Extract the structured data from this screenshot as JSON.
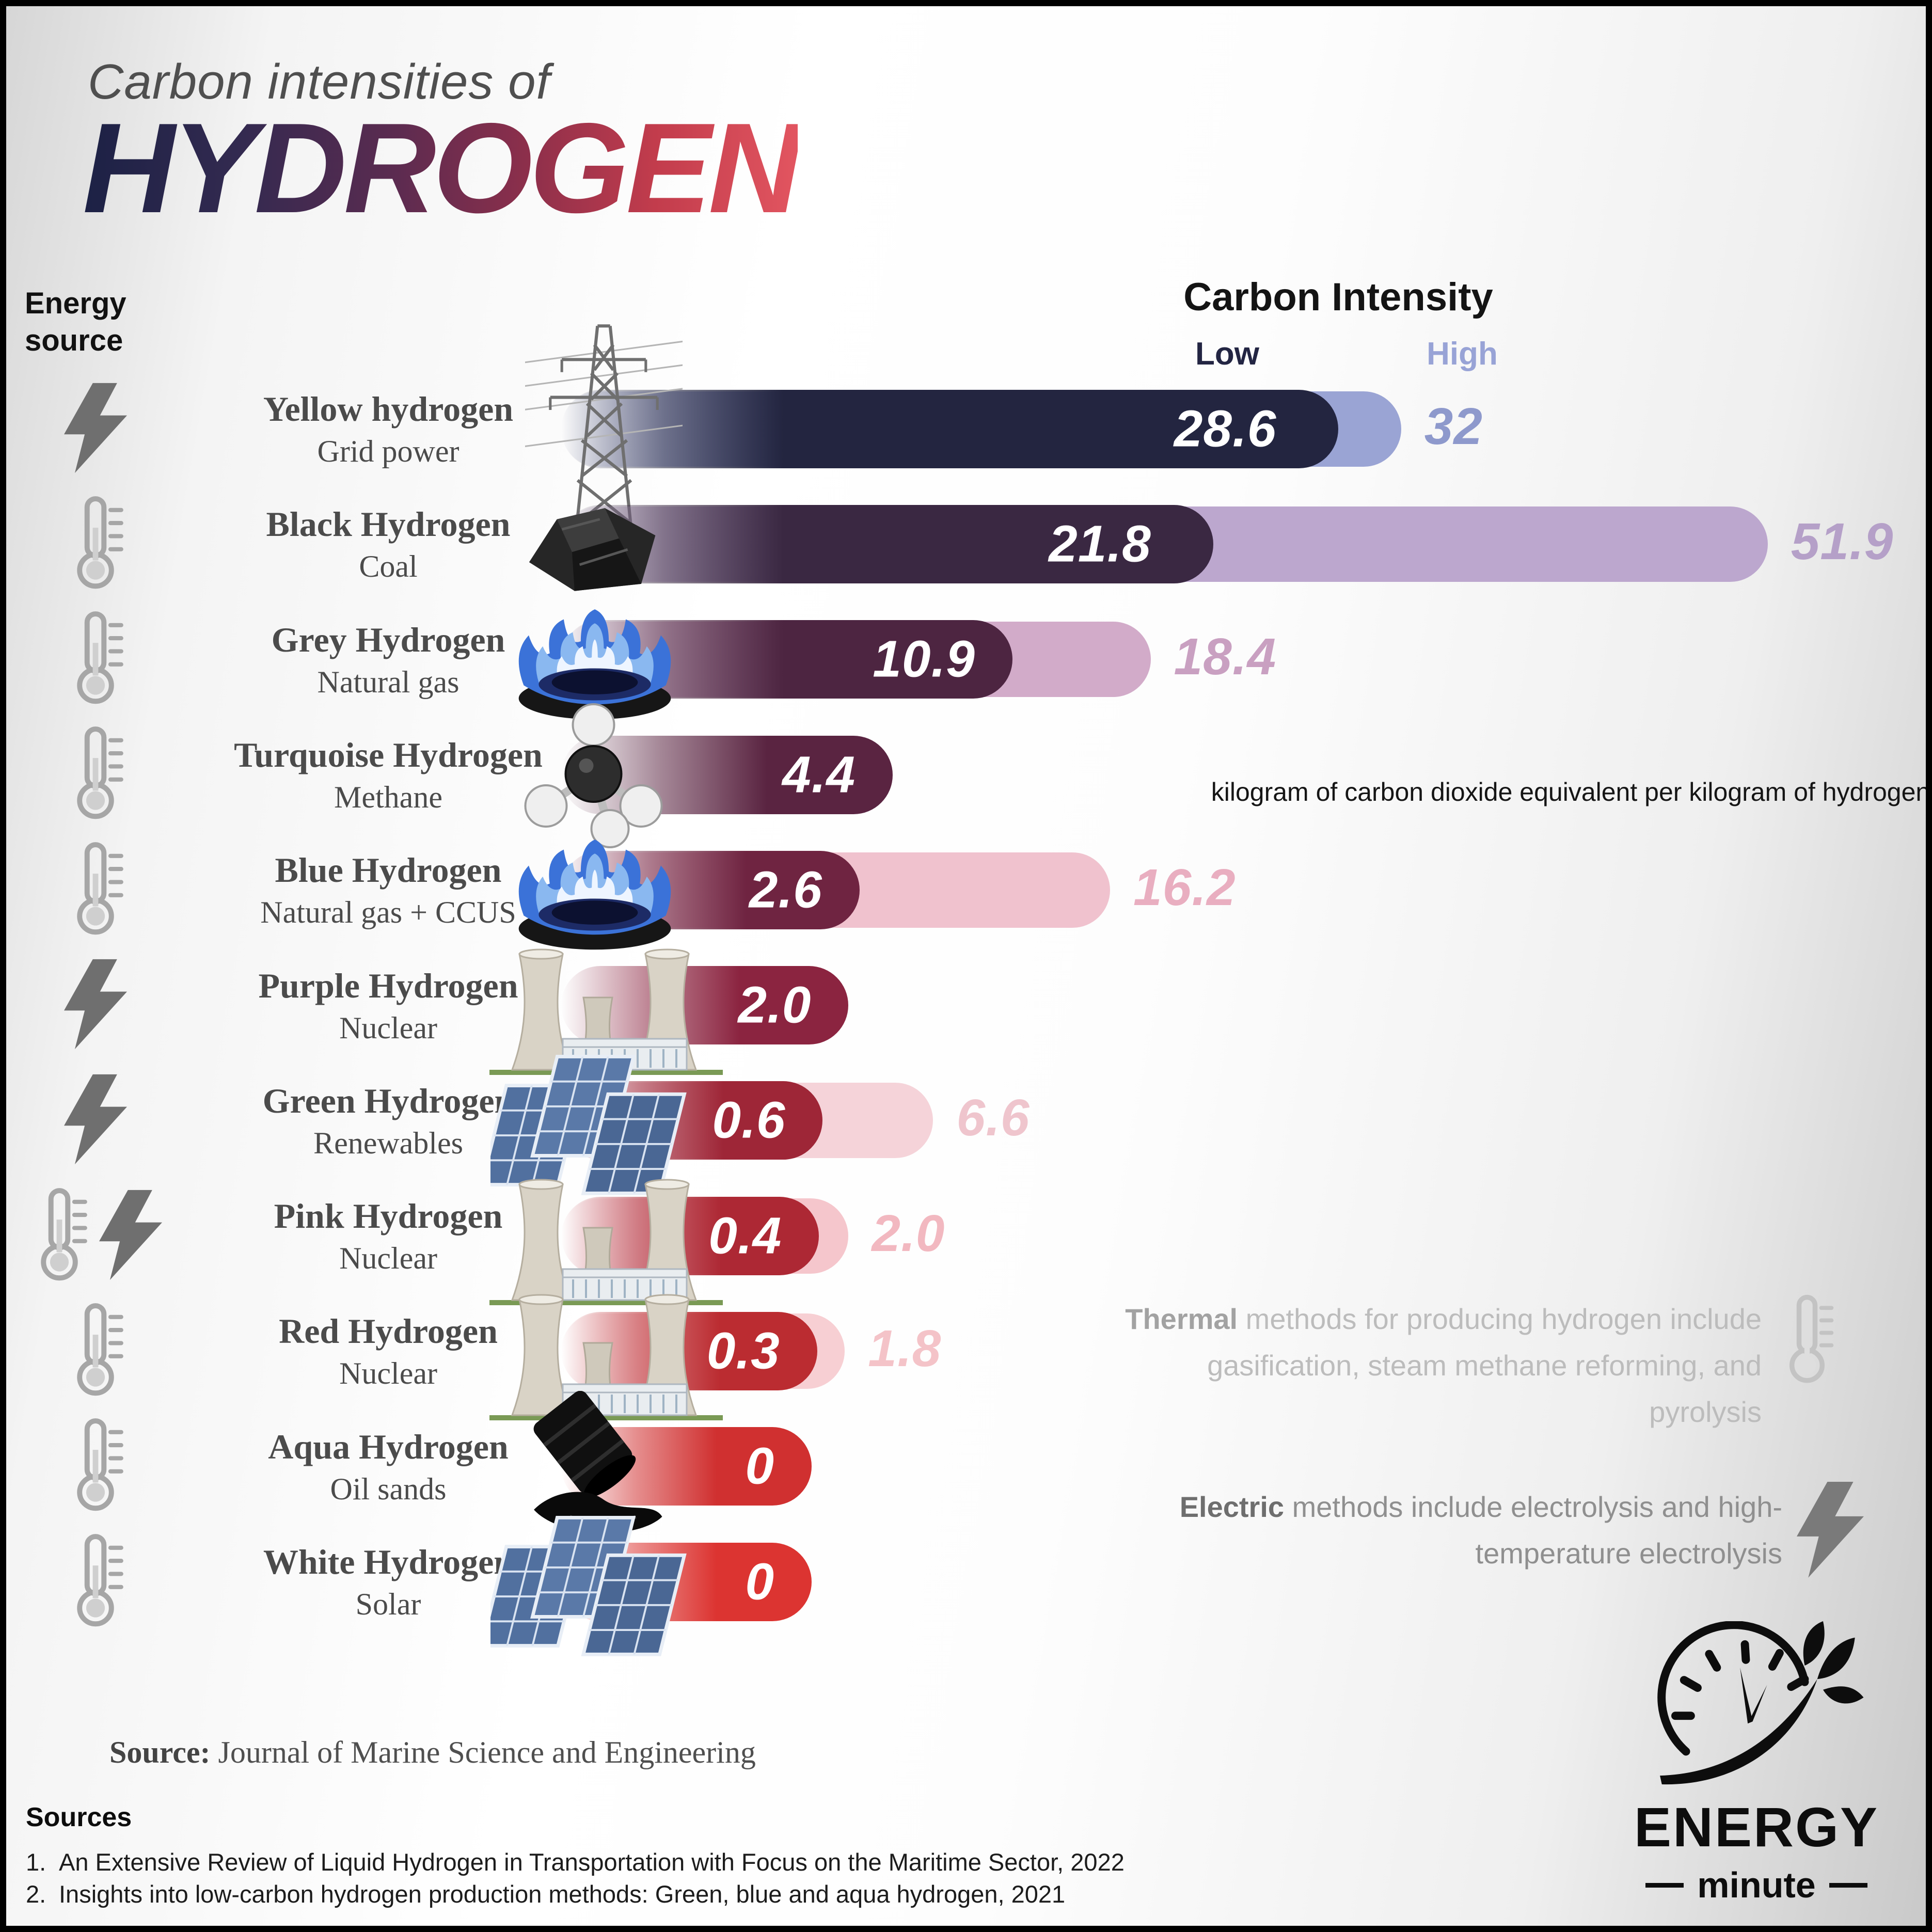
{
  "title": {
    "tagline": "Carbon intensities of",
    "main": "HYDROGEN"
  },
  "column_header": "Energy source",
  "value_header": {
    "label": "Carbon Intensity",
    "low_label": "Low",
    "high_label": "High",
    "low_color": "#232543",
    "high_color": "#98a3d6"
  },
  "units_note": "kilogram of carbon dioxide equivalent per kilogram of hydrogen",
  "notes": {
    "thermal": {
      "lead": "Thermal",
      "text": " methods for producing hydrogen include gasification, steam methane reforming, and pyrolysis",
      "icon": "thermometer-icon"
    },
    "electric": {
      "lead": "Electric",
      "text": " methods include electrolysis and high-temperature electrolysis",
      "icon": "lightning-icon"
    }
  },
  "rows": [
    {
      "name": "Yellow hydrogen",
      "sub": "Grid power",
      "energy": [
        "electric"
      ],
      "photo": "power-lines-photo",
      "low": 28.6,
      "low_label": "28.6",
      "high": 32,
      "high_label": "32",
      "low_color": "#232540",
      "high_color": "#9aa4d4",
      "high_text_color": "#8e99cc"
    },
    {
      "name": "Black Hydrogen",
      "sub": "Coal",
      "energy": [
        "thermal"
      ],
      "photo": "coal-photo",
      "low": 21.8,
      "low_label": "21.8",
      "high": 51.9,
      "high_label": "51.9",
      "low_color": "#3a2842",
      "high_color": "#bca7ce",
      "high_text_color": "#b5a0c8"
    },
    {
      "name": "Grey Hydrogen",
      "sub": "Natural gas",
      "energy": [
        "thermal"
      ],
      "photo": "gas-burner-photo",
      "low": 10.9,
      "low_label": "10.9",
      "high": 18.4,
      "high_label": "18.4",
      "low_color": "#4d2541",
      "high_color": "#d2abc9",
      "high_text_color": "#c9a0c1"
    },
    {
      "name": "Turquoise Hydrogen",
      "sub": "Methane",
      "energy": [
        "thermal"
      ],
      "photo": "methane-molecule-photo",
      "low": 4.4,
      "low_label": "4.4",
      "high": null,
      "high_label": null,
      "low_color": "#5a2441",
      "high_color": null,
      "high_text_color": null
    },
    {
      "name": "Blue Hydrogen",
      "sub": "Natural gas + CCUS",
      "energy": [
        "thermal"
      ],
      "photo": "gas-burner-photo",
      "low": 2.6,
      "low_label": "2.6",
      "high": 16.2,
      "high_label": "16.2",
      "low_color": "#6f2441",
      "high_color": "#f0c2ce",
      "high_text_color": "#e9aec0"
    },
    {
      "name": "Purple Hydrogen",
      "sub": "Nuclear",
      "energy": [
        "electric"
      ],
      "photo": "nuclear-plant-photo",
      "low": 2.0,
      "low_label": "2.0",
      "high": null,
      "high_label": null,
      "low_color": "#8b2440",
      "high_color": null,
      "high_text_color": null
    },
    {
      "name": "Green Hydrogen",
      "sub": "Renewables",
      "energy": [
        "electric"
      ],
      "photo": "solar-panels-photo",
      "low": 0.6,
      "low_label": "0.6",
      "high": 6.6,
      "high_label": "6.6",
      "low_color": "#9e2637",
      "high_color": "#f5d3d9",
      "high_text_color": "#efc5cd"
    },
    {
      "name": "Pink Hydrogen",
      "sub": "Nuclear",
      "energy": [
        "thermal",
        "electric"
      ],
      "photo": "nuclear-plant-photo",
      "low": 0.4,
      "low_label": "0.4",
      "high": 2.0,
      "high_label": "2.0",
      "low_color": "#ad2834",
      "high_color": "#f5c6cc",
      "high_text_color": "#f2b8c0"
    },
    {
      "name": "Red Hydrogen",
      "sub": "Nuclear",
      "energy": [
        "thermal"
      ],
      "photo": "nuclear-plant-photo",
      "low": 0.3,
      "low_label": "0.3",
      "high": 1.8,
      "high_label": "1.8",
      "low_color": "#bb2c31",
      "high_color": "#f7cfd3",
      "high_text_color": "#f4c3c8"
    },
    {
      "name": "Aqua Hydrogen",
      "sub": "Oil sands",
      "energy": [
        "thermal"
      ],
      "photo": "oil-sands-photo",
      "low": 0,
      "low_label": "0",
      "high": null,
      "high_label": null,
      "low_color": "#d03030",
      "high_color": null,
      "high_text_color": null
    },
    {
      "name": "White Hydrogen",
      "sub": "Solar",
      "energy": [
        "thermal"
      ],
      "photo": "solar-panels-photo",
      "low": 0,
      "low_label": "0",
      "high": null,
      "high_label": null,
      "low_color": "#dc3431",
      "high_color": null,
      "high_text_color": null
    }
  ],
  "source_line": {
    "lead": "Source:",
    "text": " Journal of Marine Science and Engineering"
  },
  "sources": {
    "heading": "Sources",
    "items": [
      {
        "num": "1.",
        "text": "An Extensive Review of Liquid Hydrogen in Transportation with Focus on the Maritime Sector, 2022"
      },
      {
        "num": "2.",
        "text": "Insights into low-carbon hydrogen production methods: Green, blue and aqua hydrogen, 2021"
      }
    ]
  },
  "logo": {
    "title": "ENERGY",
    "subtitle": "minute"
  },
  "chart_data": {
    "type": "bar",
    "orientation": "horizontal",
    "title": "Carbon intensities of HYDROGEN",
    "units": "kilogram of carbon dioxide equivalent per kilogram of hydrogen",
    "categories": [
      "Yellow hydrogen (Grid power)",
      "Black Hydrogen (Coal)",
      "Grey Hydrogen (Natural gas)",
      "Turquoise Hydrogen (Methane)",
      "Blue Hydrogen (Natural gas + CCUS)",
      "Purple Hydrogen (Nuclear)",
      "Green Hydrogen (Renewables)",
      "Pink Hydrogen (Nuclear)",
      "Red Hydrogen (Nuclear)",
      "Aqua Hydrogen (Oil sands)",
      "White Hydrogen (Solar)"
    ],
    "series": [
      {
        "name": "Low",
        "values": [
          28.6,
          21.8,
          10.9,
          4.4,
          2.6,
          2.0,
          0.6,
          0.4,
          0.3,
          0,
          0
        ]
      },
      {
        "name": "High",
        "values": [
          32,
          51.9,
          18.4,
          null,
          16.2,
          null,
          6.6,
          2.0,
          1.8,
          null,
          null
        ]
      }
    ],
    "xlim": [
      0,
      55
    ],
    "legend_position": "top",
    "grid": false
  }
}
